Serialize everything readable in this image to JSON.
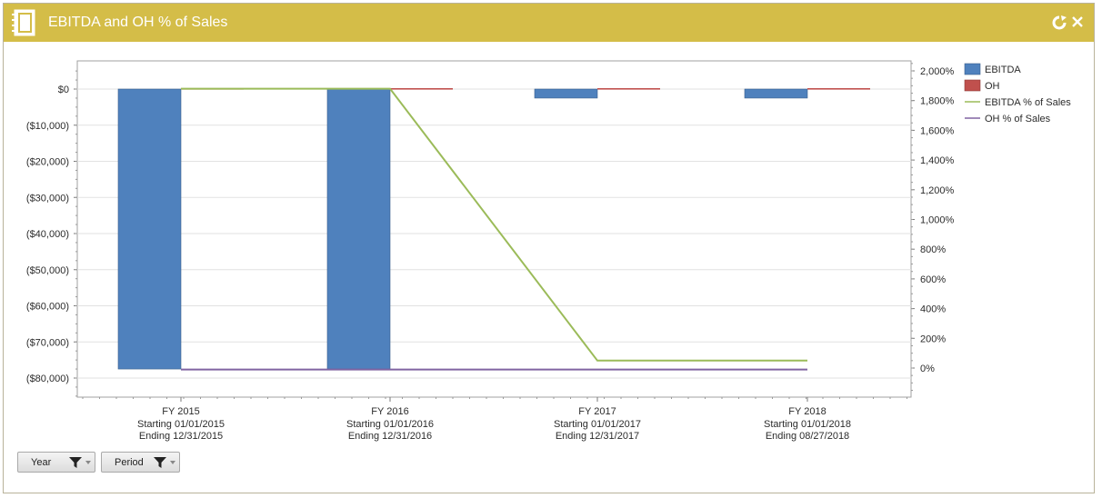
{
  "window": {
    "title": "EBITDA and OH % of Sales"
  },
  "filters": {
    "year_label": "Year",
    "period_label": "Period"
  },
  "colors": {
    "ebitda": "#4f81bd",
    "oh": "#c0504d",
    "ebitda_pct": "#9bbb59",
    "oh_pct": "#8064a2",
    "titlebar": "#d4bd48"
  },
  "icons": {
    "title": "notebook-icon",
    "refresh": "refresh-icon",
    "close": "close-icon",
    "filter": "funnel-icon"
  },
  "chart_data": {
    "type": "bar",
    "title": "",
    "categories": [
      {
        "line1": "FY 2015",
        "line2": "Starting 01/01/2015",
        "line3": "Ending 12/31/2015"
      },
      {
        "line1": "FY 2016",
        "line2": "Starting 01/01/2016",
        "line3": "Ending 12/31/2016"
      },
      {
        "line1": "FY 2017",
        "line2": "Starting 01/01/2017",
        "line3": "Ending 12/31/2017"
      },
      {
        "line1": "FY 2018",
        "line2": "Starting 01/01/2018",
        "line3": "Ending 08/27/2018"
      }
    ],
    "series": [
      {
        "name": "EBITDA",
        "type": "bar",
        "axis": "left",
        "values": [
          -77500,
          -77500,
          -2500,
          -2500
        ]
      },
      {
        "name": "OH",
        "type": "bar",
        "axis": "left",
        "values": [
          0,
          0,
          0,
          0
        ]
      },
      {
        "name": "EBITDA % of Sales",
        "type": "line",
        "axis": "right",
        "values": [
          1880,
          1880,
          50,
          50
        ]
      },
      {
        "name": "OH % of Sales",
        "type": "line",
        "axis": "right",
        "values": [
          -10,
          -10,
          -10,
          -10
        ]
      }
    ],
    "left_axis": {
      "ylim": [
        -85000,
        8000
      ],
      "ticks": [
        0,
        -10000,
        -20000,
        -30000,
        -40000,
        -50000,
        -60000,
        -70000,
        -80000
      ],
      "tick_labels": [
        "$0",
        "($10,000)",
        "($20,000)",
        "($30,000)",
        "($40,000)",
        "($50,000)",
        "($60,000)",
        "($70,000)",
        "($80,000)"
      ]
    },
    "right_axis": {
      "ylim": [
        -200,
        2080
      ],
      "ticks": [
        2000,
        1800,
        1600,
        1400,
        1200,
        1000,
        800,
        600,
        400,
        200,
        0
      ],
      "tick_labels": [
        "2,000%",
        "1,800%",
        "1,600%",
        "1,400%",
        "1,200%",
        "1,000%",
        "800%",
        "600%",
        "400%",
        "200%",
        "0%"
      ]
    },
    "grid": true,
    "legend_position": "right"
  }
}
